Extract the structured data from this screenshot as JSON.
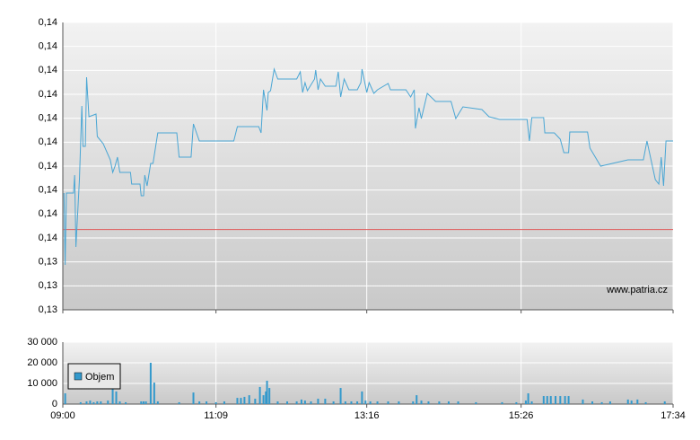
{
  "chart_data": [
    {
      "type": "line",
      "color": "#4aa6d4",
      "reference": 0.13568,
      "reference_color": "#e05a5a",
      "watermark": "www.patria.cz",
      "xlim": [
        540,
        1054
      ],
      "ylim": [
        0.133,
        0.1426
      ],
      "yticks": [
        {
          "value": 0.133,
          "label": "0,13"
        },
        {
          "value": 0.1338,
          "label": "0,13"
        },
        {
          "value": 0.1346,
          "label": "0,13"
        },
        {
          "value": 0.1354,
          "label": "0,14"
        },
        {
          "value": 0.1362,
          "label": "0,14"
        },
        {
          "value": 0.137,
          "label": "0,14"
        },
        {
          "value": 0.1378,
          "label": "0,14"
        },
        {
          "value": 0.1386,
          "label": "0,14"
        },
        {
          "value": 0.1394,
          "label": "0,14"
        },
        {
          "value": 0.1402,
          "label": "0,14"
        },
        {
          "value": 0.141,
          "label": "0,14"
        },
        {
          "value": 0.1418,
          "label": "0,14"
        },
        {
          "value": 0.1426,
          "label": "0,14"
        }
      ],
      "x": [
        541,
        542,
        543,
        549,
        550,
        551,
        554,
        556,
        557,
        559,
        560,
        562,
        568,
        569,
        574,
        580,
        582,
        584,
        586,
        588,
        597,
        598,
        605,
        606,
        608,
        609,
        611,
        614,
        616,
        620,
        636,
        638,
        648,
        650,
        655,
        684,
        687,
        705,
        707,
        709,
        712,
        713,
        715,
        718,
        721,
        737,
        740,
        742,
        744,
        746,
        752,
        753,
        755,
        757,
        761,
        770,
        772,
        774,
        777,
        781,
        788,
        791,
        792,
        796,
        798,
        802,
        805,
        814,
        816,
        829,
        833,
        836,
        837,
        840,
        842,
        847,
        854,
        867,
        871,
        877,
        893,
        899,
        908,
        931,
        933,
        935,
        945,
        946,
        954,
        959,
        962,
        966,
        967,
        982,
        984,
        993,
        1016,
        1029,
        1032,
        1039,
        1042,
        1044,
        1046,
        1048,
        1054
      ],
      "values": [
        0.1369,
        0.1345,
        0.1369,
        0.1369,
        0.1375,
        0.1351,
        0.13735,
        0.13981,
        0.13846,
        0.13846,
        0.14077,
        0.13945,
        0.13954,
        0.13879,
        0.13855,
        0.13801,
        0.13759,
        0.1378,
        0.1381,
        0.13759,
        0.13759,
        0.1372,
        0.1372,
        0.13681,
        0.13681,
        0.1375,
        0.13714,
        0.13789,
        0.13789,
        0.13891,
        0.13891,
        0.1381,
        0.1381,
        0.13921,
        0.13864,
        0.13864,
        0.13912,
        0.13912,
        0.13891,
        0.14035,
        0.13966,
        0.14026,
        0.14032,
        0.14104,
        0.14071,
        0.14071,
        0.14095,
        0.14026,
        0.14059,
        0.14032,
        0.14071,
        0.14101,
        0.14035,
        0.14071,
        0.14047,
        0.14047,
        0.14095,
        0.14011,
        0.14071,
        0.14035,
        0.14035,
        0.14059,
        0.14104,
        0.14026,
        0.14059,
        0.14023,
        0.14035,
        0.14056,
        0.14035,
        0.14035,
        0.14011,
        0.14035,
        0.13906,
        0.13975,
        0.13939,
        0.14023,
        0.13996,
        0.13996,
        0.13939,
        0.13978,
        0.13969,
        0.13945,
        0.13936,
        0.13936,
        0.13864,
        0.13942,
        0.13942,
        0.13891,
        0.13891,
        0.1387,
        0.13825,
        0.13825,
        0.13894,
        0.13894,
        0.1384,
        0.1378,
        0.13801,
        0.13801,
        0.13864,
        0.13735,
        0.1372,
        0.1381,
        0.13714,
        0.13864,
        0.13864
      ]
    },
    {
      "type": "bar",
      "xlim": [
        540,
        1054
      ],
      "ylim": [
        0,
        30000
      ],
      "yticks": [
        0,
        {
          "value": 10000,
          "label": "10 000"
        },
        {
          "value": 20000,
          "label": "20 000"
        },
        {
          "value": 30000,
          "label": "30 000"
        }
      ],
      "xticks": [
        {
          "value": 540,
          "label": "09:00"
        },
        {
          "value": 669,
          "label": "11:09"
        },
        {
          "value": 796,
          "label": "13:16"
        },
        {
          "value": 926,
          "label": "15:26"
        },
        {
          "value": 1054,
          "label": "17:34"
        }
      ],
      "x": [
        542,
        555,
        560,
        563,
        566,
        569,
        572,
        578,
        582,
        585,
        588,
        593,
        606,
        608,
        610,
        614,
        617,
        620,
        638,
        650,
        655,
        661,
        669,
        676,
        687,
        690,
        693,
        697,
        702,
        706,
        709,
        711,
        712,
        714,
        721,
        729,
        737,
        741,
        744,
        749,
        755,
        761,
        768,
        774,
        778,
        783,
        788,
        792,
        795,
        799,
        805,
        814,
        823,
        835,
        838,
        842,
        848,
        857,
        865,
        873,
        888,
        910,
        922,
        930,
        932,
        935,
        945,
        948,
        951,
        955,
        959,
        963,
        966,
        978,
        986,
        994,
        1001,
        1016,
        1019,
        1024,
        1031,
        1047
      ],
      "series": [
        {
          "name": "Objem",
          "color": "#3399cc",
          "values": [
            5200,
            900,
            1300,
            1700,
            900,
            1300,
            1300,
            1700,
            16100,
            6100,
            1300,
            900,
            1300,
            1300,
            1300,
            20000,
            10400,
            1300,
            900,
            5600,
            1300,
            1300,
            900,
            1300,
            3000,
            3000,
            3500,
            4300,
            2600,
            8300,
            4300,
            6100,
            11300,
            7800,
            1300,
            1300,
            1300,
            2200,
            1700,
            1300,
            2600,
            2600,
            1300,
            7800,
            1300,
            1300,
            1300,
            6100,
            1700,
            1300,
            1300,
            1300,
            1300,
            1300,
            4300,
            1700,
            1300,
            1300,
            1300,
            1300,
            900,
            900,
            900,
            1700,
            5200,
            1300,
            3900,
            3900,
            3900,
            3900,
            3900,
            3900,
            3900,
            2200,
            1300,
            900,
            1300,
            2200,
            1700,
            2200,
            900,
            1300
          ]
        }
      ]
    }
  ]
}
